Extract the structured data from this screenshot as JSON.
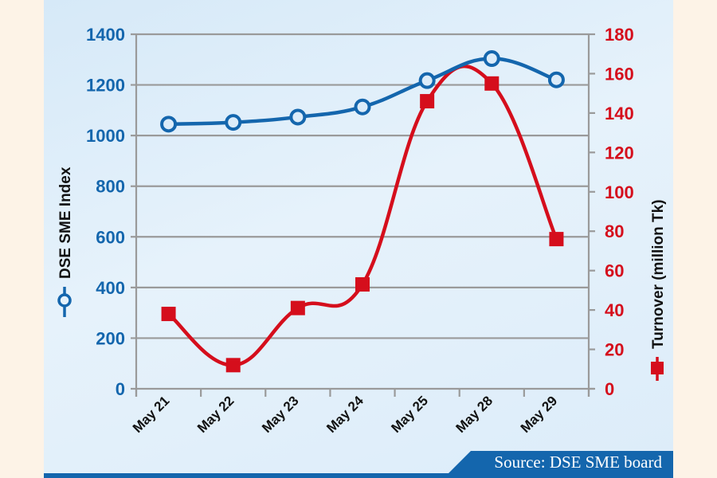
{
  "chart_data": {
    "type": "line",
    "title": "",
    "categories": [
      "May 21",
      "May 22",
      "May 23",
      "May 24",
      "May 25",
      "May 28",
      "May 29"
    ],
    "series": [
      {
        "name": "DSE SME Index",
        "axis": "left",
        "color": "#1466ad",
        "marker": "circle-open",
        "values": [
          1045,
          1052,
          1073,
          1113,
          1217,
          1304,
          1220
        ]
      },
      {
        "name": "Turnover (million Tk)",
        "axis": "right",
        "color": "#d50e1c",
        "marker": "square-filled",
        "values": [
          38,
          12,
          41,
          53,
          146,
          155,
          76
        ]
      }
    ],
    "xlabel": "",
    "ylabel": "DSE SME Index",
    "y2label": "Turnover (million Tk)",
    "ylim": [
      0,
      1400
    ],
    "y2lim": [
      0,
      180
    ],
    "yticks": [
      0,
      200,
      400,
      600,
      800,
      1000,
      1200,
      1400
    ],
    "y2ticks": [
      0,
      20,
      40,
      60,
      80,
      100,
      120,
      140,
      160,
      180
    ],
    "grid": true,
    "legend_position": "inline with axis titles",
    "smooth": true
  },
  "labels": {
    "left_axis_title": "DSE SME Index",
    "right_axis_title": "Turnover (million Tk)",
    "source": "Source: DSE SME board"
  },
  "colors": {
    "index_line": "#1466ad",
    "turnover_line": "#d50e1c",
    "grid": "#9a9a9a",
    "banner": "#1466ad",
    "page_bg": "#fdf3e7"
  }
}
